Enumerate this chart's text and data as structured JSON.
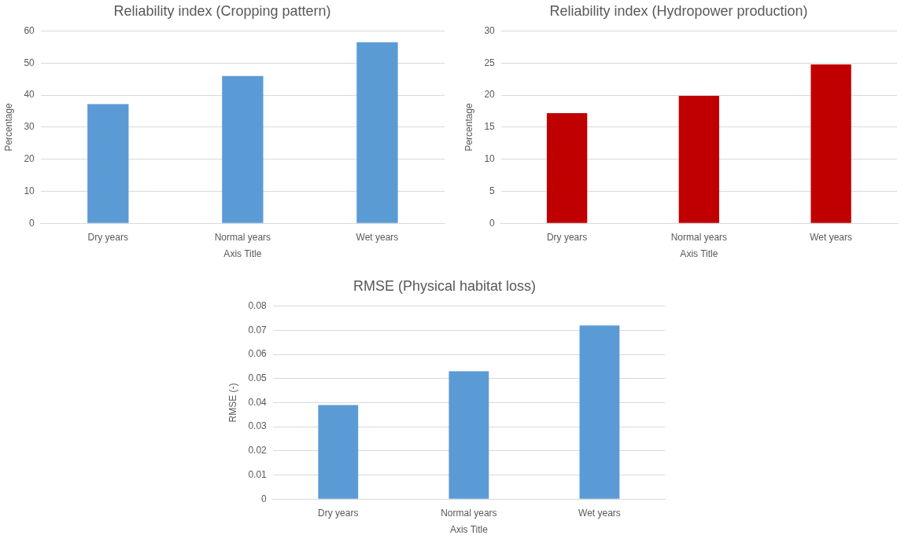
{
  "chart_data": [
    {
      "type": "bar",
      "title": "Reliability index (Cropping pattern)",
      "xlabel": "Axis Title",
      "ylabel": "Percentage",
      "categories": [
        "Dry years",
        "Normal years",
        "Wet years"
      ],
      "values": [
        37.2,
        46.0,
        56.5
      ],
      "color": "#5b9bd5",
      "ylim": [
        0,
        60
      ],
      "yticks": [
        0,
        10,
        20,
        30,
        40,
        50,
        60
      ],
      "grid": "y",
      "legend": false
    },
    {
      "type": "bar",
      "title": "Reliability index (Hydropower production)",
      "xlabel": "Axis Title",
      "ylabel": "Percentage",
      "categories": [
        "Dry years",
        "Normal years",
        "Wet years"
      ],
      "values": [
        17.2,
        19.9,
        24.8
      ],
      "color": "#c00000",
      "ylim": [
        0,
        30
      ],
      "yticks": [
        0,
        5,
        10,
        15,
        20,
        25,
        30
      ],
      "grid": "y",
      "legend": false
    },
    {
      "type": "bar",
      "title": "RMSE (Physical habitat loss)",
      "xlabel": "Axis Title",
      "ylabel": "RMSE (-)",
      "categories": [
        "Dry years",
        "Normal years",
        "Wet years"
      ],
      "values": [
        0.039,
        0.053,
        0.072
      ],
      "color": "#5b9bd5",
      "ylim": [
        0,
        0.08
      ],
      "yticks": [
        0,
        0.01,
        0.02,
        0.03,
        0.04,
        0.05,
        0.06,
        0.07,
        0.08
      ],
      "grid": "y",
      "legend": false
    }
  ]
}
